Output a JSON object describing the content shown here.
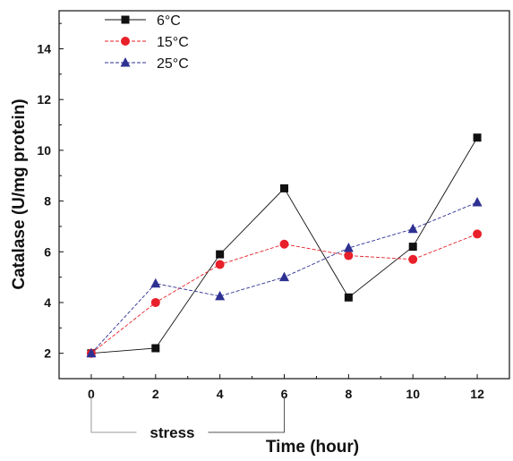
{
  "chart_data": {
    "type": "line",
    "xlabel": "Time (hour)",
    "ylabel": "Catalase (U/mg protein)",
    "x": [
      0,
      2,
      4,
      6,
      8,
      10,
      12
    ],
    "xlim": [
      -1,
      13
    ],
    "ylim": [
      1,
      15.5
    ],
    "xticks": [
      0,
      2,
      4,
      6,
      8,
      10,
      12
    ],
    "yticks": [
      2,
      4,
      6,
      8,
      10,
      12,
      14
    ],
    "grid": false,
    "legend_position": "top-left",
    "series": [
      {
        "name": "6°C",
        "color": "#111111",
        "marker": "square",
        "line_style": "solid",
        "values": [
          2.0,
          2.2,
          5.9,
          8.5,
          4.2,
          6.2,
          10.5
        ]
      },
      {
        "name": "15°C",
        "color": "#e8202a",
        "marker": "circle",
        "line_style": "dashed",
        "values": [
          2.0,
          4.0,
          5.5,
          6.3,
          5.85,
          5.7,
          6.7
        ]
      },
      {
        "name": "25°C",
        "color": "#2e3192",
        "marker": "triangle",
        "line_style": "dashed",
        "values": [
          2.0,
          4.75,
          4.25,
          5.0,
          6.15,
          6.9,
          7.95
        ]
      }
    ],
    "annotations": [
      {
        "label": "stress",
        "x_range": [
          0,
          6
        ]
      }
    ]
  }
}
